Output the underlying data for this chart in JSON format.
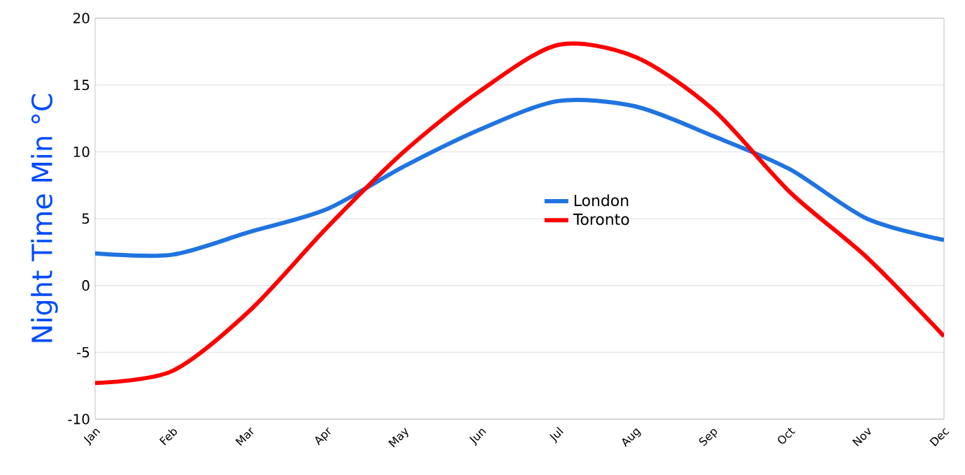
{
  "chart_data": {
    "type": "line",
    "ylabel": "Night Time Min °C",
    "categories": [
      "Jan",
      "Feb",
      "Mar",
      "Apr",
      "May",
      "Jun",
      "Jul",
      "Aug",
      "Sep",
      "Oct",
      "Nov",
      "Dec"
    ],
    "series": [
      {
        "name": "London",
        "color": "#1f74e0",
        "values": [
          2.4,
          2.3,
          4.0,
          5.7,
          8.9,
          11.7,
          13.8,
          13.4,
          11.2,
          8.7,
          5.0,
          3.4
        ]
      },
      {
        "name": "Toronto",
        "color": "#ff0000",
        "values": [
          -7.3,
          -6.4,
          -1.9,
          4.3,
          10.0,
          14.6,
          18.0,
          17.1,
          13.2,
          7.0,
          2.1,
          -3.8
        ]
      }
    ],
    "ylim": [
      -10,
      20
    ],
    "yticks": [
      -10,
      -5,
      0,
      5,
      10,
      15,
      20
    ],
    "grid": "y",
    "legend": "center",
    "marker": "none",
    "line_style": "solid"
  }
}
